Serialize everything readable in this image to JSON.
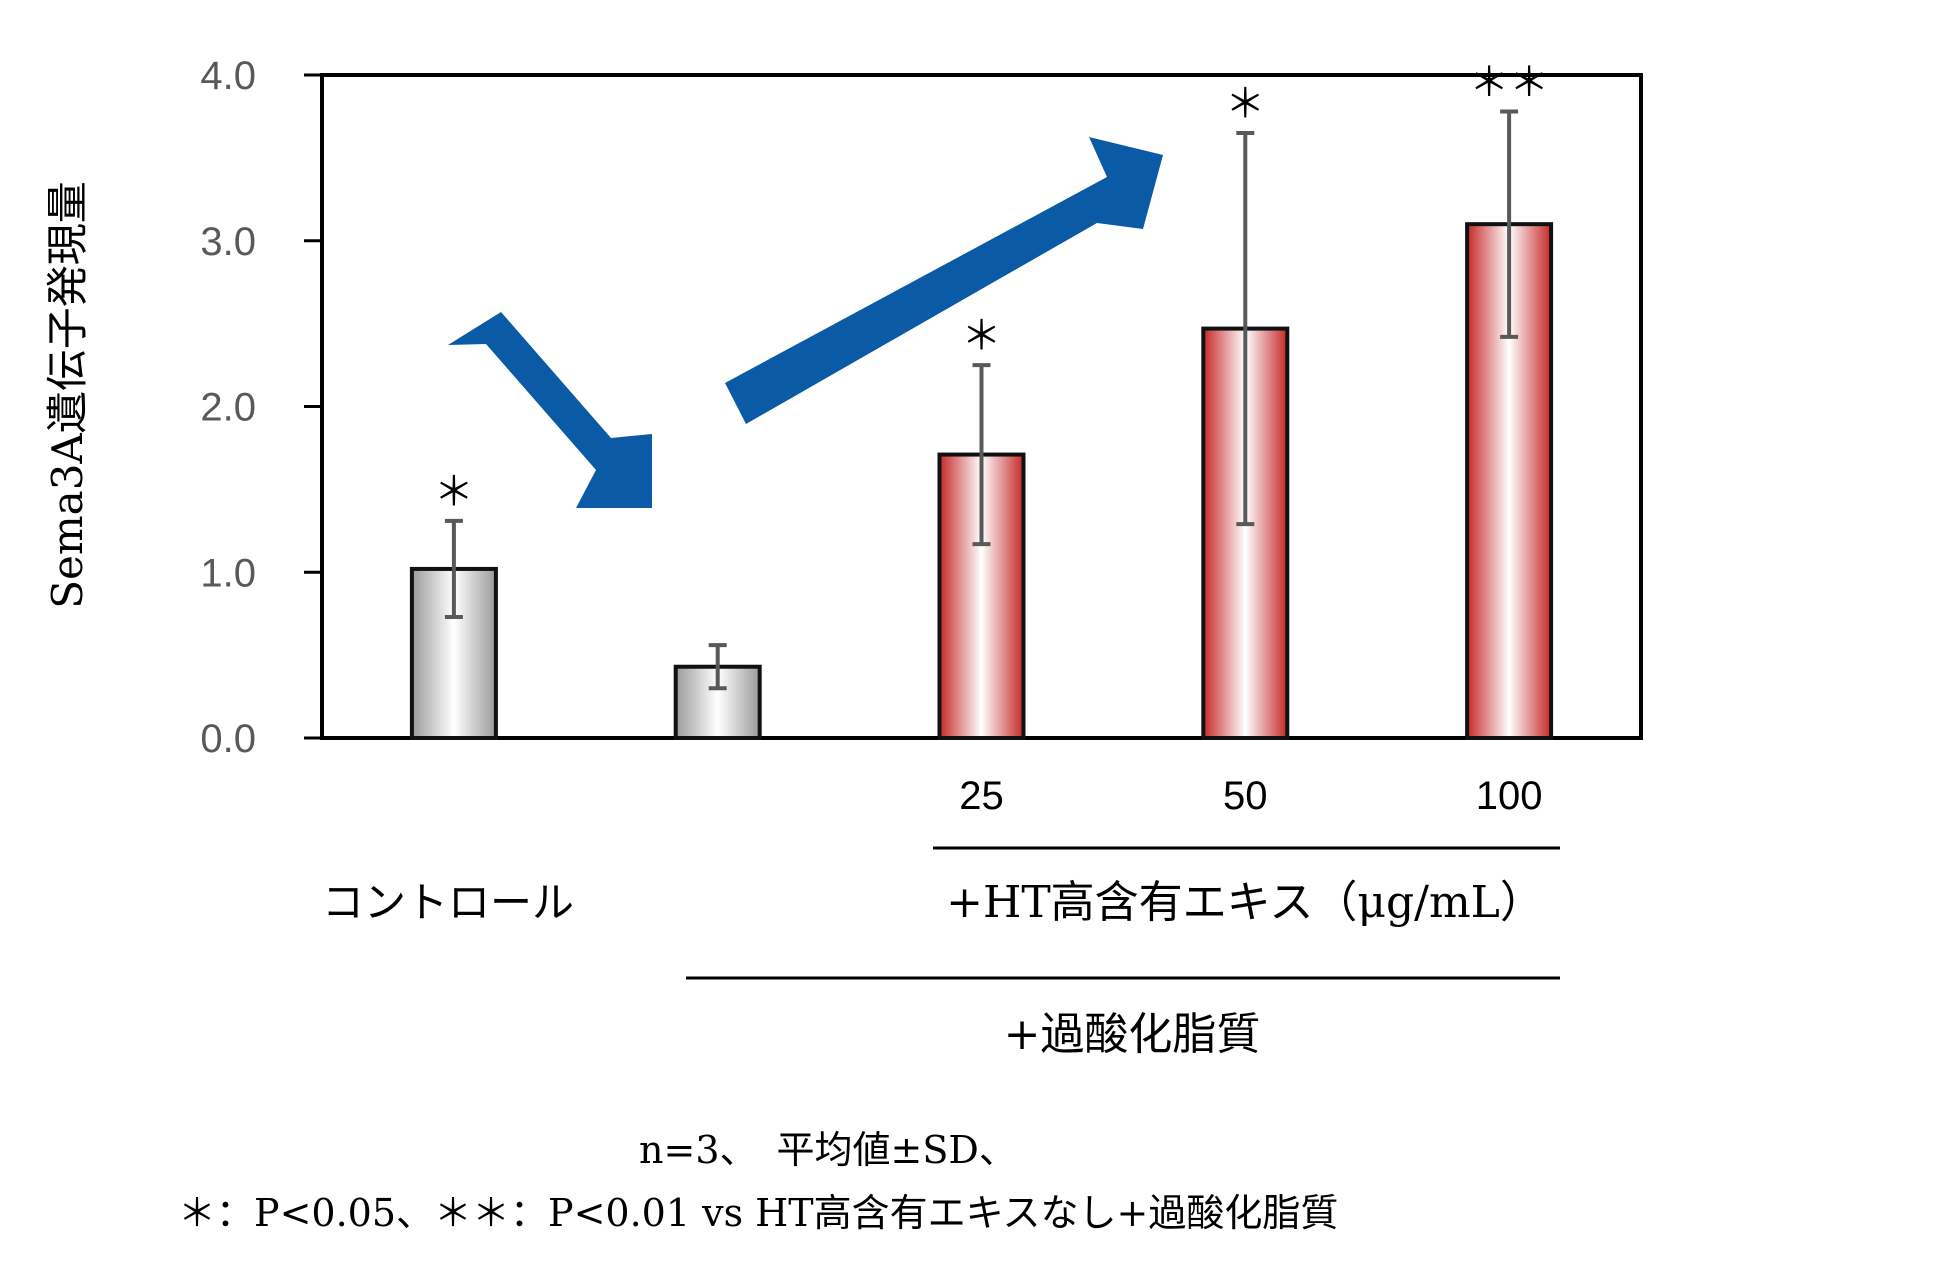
{
  "chart_data": {
    "type": "bar",
    "ylabel": "Sema3A遺伝子発現量",
    "ylim": [
      0,
      4.0
    ],
    "yticks": [
      "0.0",
      "1.0",
      "2.0",
      "3.0",
      "4.0"
    ],
    "categories": [
      "コントロール",
      "",
      "25",
      "50",
      "100"
    ],
    "values": [
      1.02,
      0.43,
      1.71,
      2.47,
      3.1
    ],
    "error_bars": [
      0.29,
      0.13,
      0.54,
      1.18,
      0.68
    ],
    "significance": [
      "＊",
      "",
      "＊",
      "＊",
      "＊＊"
    ],
    "bar_colors": [
      "#c8c8c8",
      "#c8c8c8",
      "#d32f2f",
      "#d32f2f",
      "#d32f2f"
    ],
    "arrow_color": "#0b5aa6",
    "group_labels": {
      "ht_extract": "+HT高含有エキス（μg/mL）",
      "peroxide": "+過酸化脂質"
    },
    "footnote_line1": "n=3、　平均値±SD、",
    "footnote_line2": "＊：P<0.05、＊＊：P<0.01 vs HT高含有エキスなし+過酸化脂質"
  }
}
